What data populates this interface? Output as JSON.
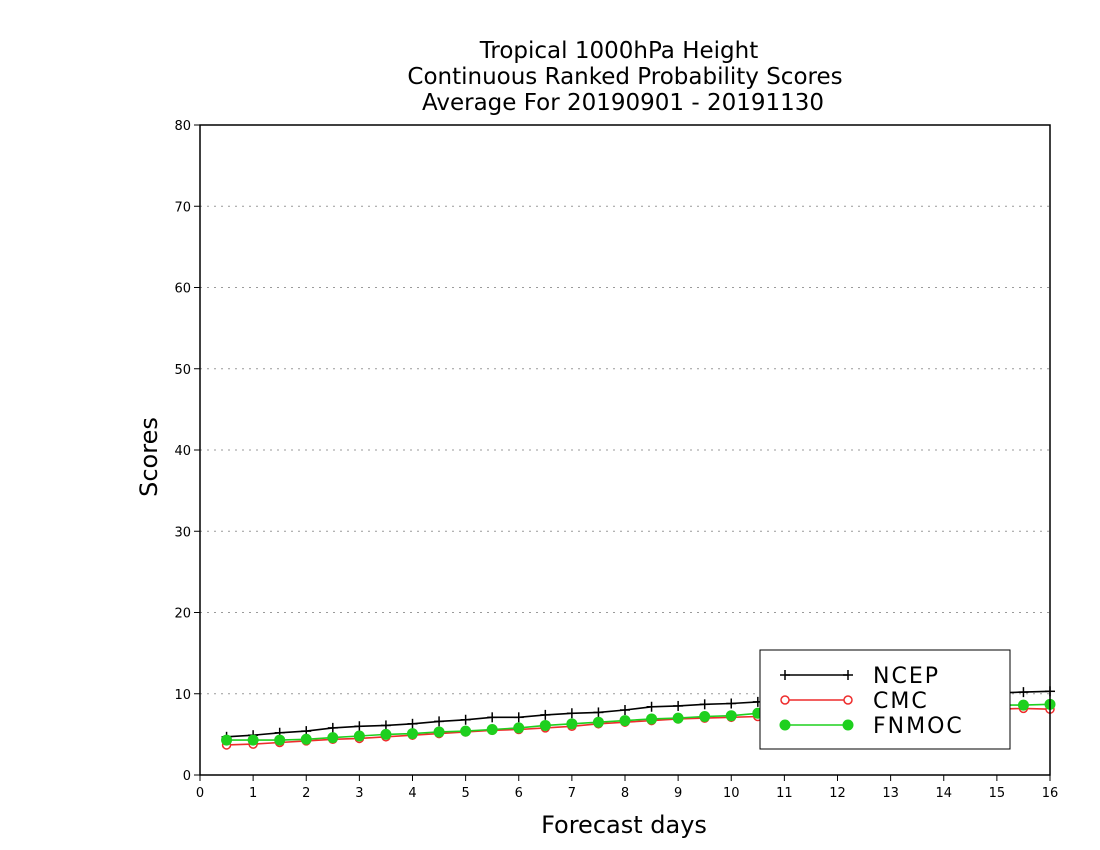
{
  "chart_data": {
    "type": "line",
    "title": [
      "Tropical 1000hPa Height",
      "Continuous Ranked Probability Scores",
      "Average For 20190901 - 20191130"
    ],
    "xlabel": "Forecast days",
    "ylabel": "Scores",
    "xlim": [
      0,
      16
    ],
    "ylim": [
      0,
      80
    ],
    "x_ticks": [
      "0",
      "1",
      "2",
      "3",
      "4",
      "5",
      "6",
      "7",
      "8",
      "9",
      "10",
      "11",
      "12",
      "13",
      "14",
      "15",
      "16"
    ],
    "y_ticks": [
      "0",
      "10",
      "20",
      "30",
      "40",
      "50",
      "60",
      "70",
      "80"
    ],
    "grid": "horizontal dotted",
    "legend_position": "bottom-right",
    "x": [
      0.5,
      1,
      1.5,
      2,
      2.5,
      3,
      3.5,
      4,
      4.5,
      5,
      5.5,
      6,
      6.5,
      7,
      7.5,
      8,
      8.5,
      9,
      9.5,
      10,
      10.5,
      11,
      11.5,
      12,
      12.5,
      13,
      13.5,
      14,
      14.5,
      15,
      15.5,
      16
    ],
    "series": [
      {
        "name": "NCEP",
        "color": "#000000",
        "marker": "plus",
        "values": [
          4.7,
          4.9,
          5.2,
          5.4,
          5.8,
          6.0,
          6.1,
          6.3,
          6.6,
          6.8,
          7.1,
          7.1,
          7.4,
          7.6,
          7.7,
          8.0,
          8.4,
          8.5,
          8.7,
          8.8,
          9.0,
          9.2,
          9.4,
          9.5,
          9.6,
          9.7,
          9.8,
          9.9,
          10.0,
          10.1,
          10.2,
          10.3
        ]
      },
      {
        "name": "CMC",
        "color": "#ee2c2c",
        "marker": "open-circle",
        "values": [
          3.7,
          3.8,
          4.0,
          4.2,
          4.4,
          4.5,
          4.7,
          4.9,
          5.1,
          5.3,
          5.5,
          5.6,
          5.8,
          6.0,
          6.3,
          6.5,
          6.7,
          6.9,
          7.0,
          7.1,
          7.2,
          7.3,
          7.4,
          7.5,
          7.6,
          7.7,
          7.8,
          7.9,
          8.0,
          8.1,
          8.2,
          8.1
        ]
      },
      {
        "name": "FNMOC",
        "color": "#1ed01e",
        "marker": "filled-circle",
        "values": [
          4.3,
          4.3,
          4.3,
          4.4,
          4.6,
          4.8,
          5.0,
          5.1,
          5.3,
          5.4,
          5.6,
          5.8,
          6.1,
          6.3,
          6.5,
          6.7,
          6.9,
          7.0,
          7.2,
          7.3,
          7.6,
          7.8,
          8.0,
          8.1,
          8.2,
          8.3,
          8.4,
          8.5,
          8.5,
          8.6,
          8.6,
          8.7
        ]
      }
    ]
  }
}
